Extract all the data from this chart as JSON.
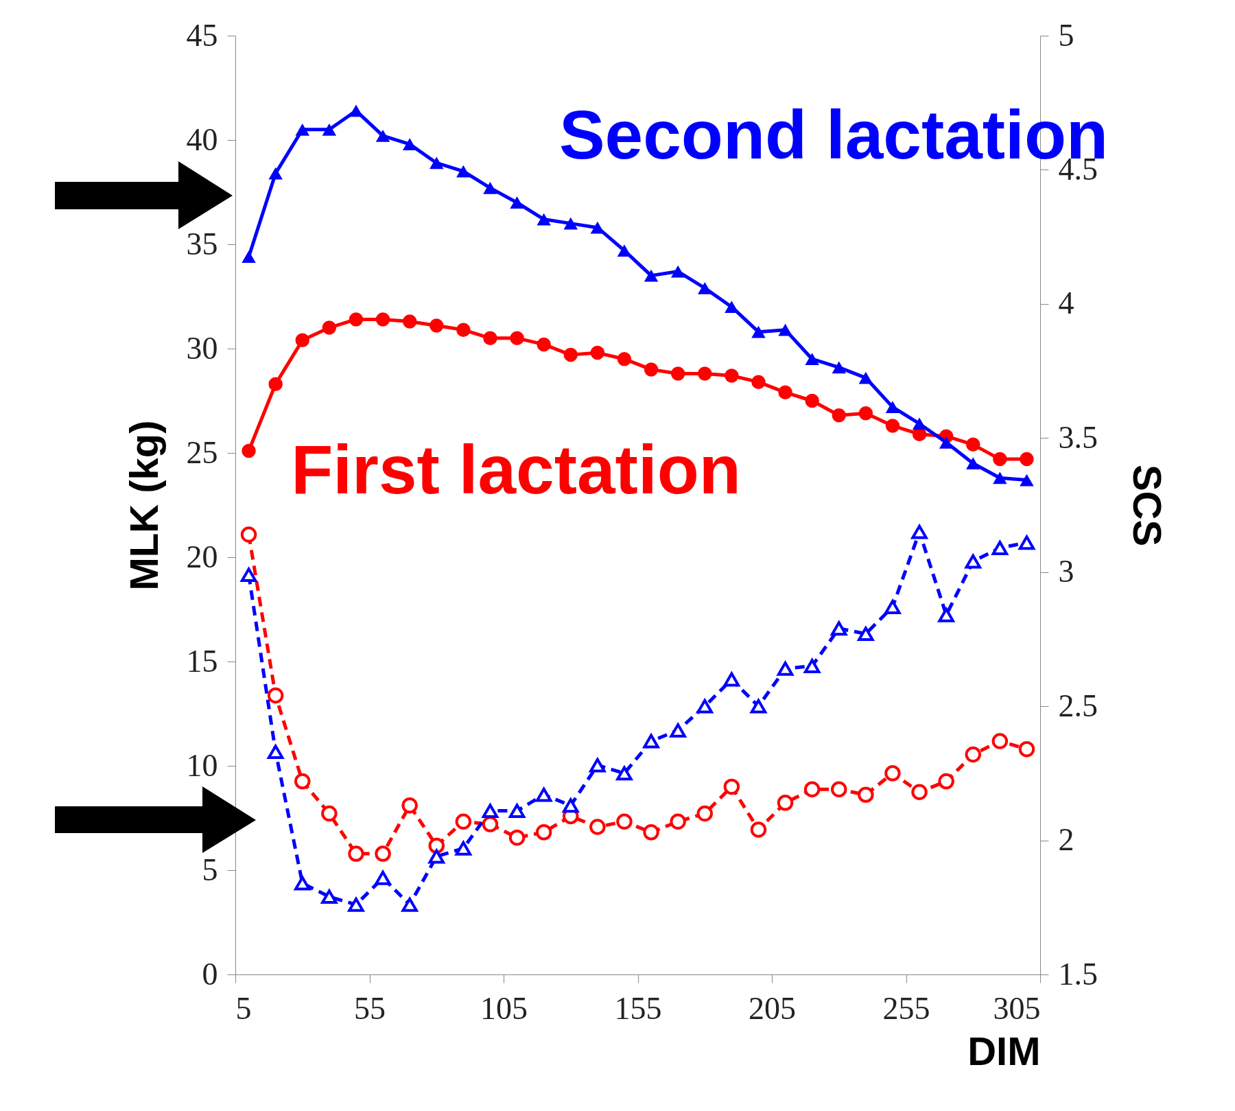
{
  "chart_data": {
    "type": "line",
    "xlabel": "DIM",
    "ylabel": "MLK (kg)",
    "y2label": "SCS",
    "x": [
      10,
      20,
      30,
      40,
      50,
      60,
      70,
      80,
      90,
      100,
      110,
      120,
      130,
      140,
      150,
      160,
      170,
      180,
      190,
      200,
      210,
      220,
      230,
      240,
      250,
      260,
      270,
      280,
      290,
      300
    ],
    "xlim": [
      5,
      305
    ],
    "xticks": [
      5,
      55,
      105,
      155,
      205,
      255,
      305
    ],
    "ylim": [
      0,
      45
    ],
    "yticks": [
      0,
      5,
      10,
      15,
      20,
      25,
      30,
      35,
      40,
      45
    ],
    "y2lim": [
      1.5,
      5
    ],
    "y2ticks": [
      1.5,
      2,
      2.5,
      3,
      3.5,
      4,
      4.5,
      5
    ],
    "grid": false,
    "series": [
      {
        "name": "First lactation",
        "color": "#ff0000",
        "marker": "circle",
        "line_style": "solid",
        "values": [
          25.1,
          28.3,
          30.4,
          31.0,
          31.4,
          31.4,
          31.3,
          31.1,
          30.9,
          30.5,
          30.5,
          30.2,
          29.7,
          29.8,
          29.5,
          29.0,
          28.8,
          28.8,
          28.7,
          28.4,
          27.9,
          27.5,
          26.8,
          26.9,
          26.3,
          25.9,
          25.8,
          25.4,
          24.7,
          24.7
        ]
      },
      {
        "name": "Second lactation",
        "color": "#0000ff",
        "marker": "triangle",
        "line_style": "solid",
        "values": [
          34.4,
          38.4,
          40.5,
          40.5,
          41.4,
          40.2,
          39.8,
          38.9,
          38.5,
          37.7,
          37.0,
          36.2,
          36.0,
          35.8,
          34.7,
          33.5,
          33.7,
          32.9,
          32.0,
          30.8,
          30.9,
          29.5,
          29.1,
          28.6,
          27.2,
          26.4,
          25.5,
          24.5,
          23.8,
          23.7
        ]
      },
      {
        "color": "#ff0000",
        "marker": "circle",
        "line_style": "dashed",
        "axis": "y2",
        "values": [
          3.14,
          2.54,
          2.22,
          2.1,
          1.95,
          1.95,
          2.13,
          1.98,
          2.07,
          2.06,
          2.01,
          2.03,
          2.09,
          2.05,
          2.07,
          2.03,
          2.07,
          2.1,
          2.2,
          2.04,
          2.14,
          2.19,
          2.19,
          2.17,
          2.25,
          2.18,
          2.22,
          2.32,
          2.37,
          2.34
        ]
      },
      {
        "color": "#0000ff",
        "marker": "triangle",
        "line_style": "dashed",
        "axis": "y2",
        "values": [
          2.99,
          2.33,
          1.84,
          1.79,
          1.76,
          1.86,
          1.76,
          1.94,
          1.97,
          2.11,
          2.11,
          2.17,
          2.13,
          2.28,
          2.25,
          2.37,
          2.41,
          2.5,
          2.6,
          2.5,
          2.64,
          2.65,
          2.79,
          2.77,
          2.87,
          3.15,
          2.84,
          3.04,
          3.09,
          3.11
        ]
      }
    ]
  }
}
